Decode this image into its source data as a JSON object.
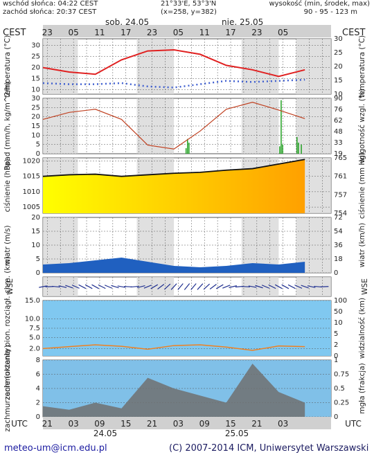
{
  "header": {
    "sunrise": "wschód słońca: 04:22 CEST",
    "sunset": "zachód słońca: 20:37 CEST",
    "coords": "21°33'E, 53°3'N",
    "grid": "(x=258, y=382)",
    "height_label": "wysokość (min, środek, max)",
    "height_values": "90 - 95 - 123 m",
    "day1": "sob, 24.05",
    "day2": "nie, 25.05",
    "tz_left": "CEST",
    "tz_right": "CEST",
    "utc_left": "UTC",
    "utc_right": "UTC",
    "date1": "24.05",
    "date2": "25.05"
  },
  "footer": {
    "email": "meteo-um@icm.edu.pl",
    "copyright": "(C) 2007-2014 ICM, Uniwersytet Warszawski"
  },
  "colors": {
    "panel_bg": "#ffffff",
    "night": "#d8d8d8",
    "temp_line": "#e02020",
    "dew_dots": "#4060d0",
    "humidity": "#c04020",
    "precip": "#20a020",
    "pressure_line": "#101010",
    "pressure_fill_low": "#ffff00",
    "pressure_fill_high": "#ffa000",
    "wind_bar": "#2060c0",
    "cloud_bg": "#80c8f0",
    "cloud_line": "#f08020",
    "cloud_bar": "#3060d8"
  },
  "chart_data": {
    "type": "meteogram",
    "top_ticks_cest": [
      "23",
      "05",
      "11",
      "17",
      "23",
      "05",
      "11",
      "17",
      "23",
      "05"
    ],
    "bottom_ticks_utc": [
      "21",
      "03",
      "09",
      "15",
      "21",
      "03",
      "09",
      "15",
      "21",
      "03"
    ],
    "panels": [
      {
        "id": "temperature",
        "ylabel_left": "temperatura (°C)",
        "ylabel_right": "temperatura (°C)",
        "yticks": [
          10,
          15,
          20,
          25,
          30
        ],
        "ylim": [
          8,
          33
        ],
        "series": [
          {
            "x": [
              0,
              6,
              12,
              18,
              24,
              30,
              36,
              42,
              48,
              54,
              60
            ],
            "values": [
              20,
              18,
              17,
              23.5,
              27.5,
              28,
              26,
              21,
              19,
              16,
              19
            ]
          },
          {
            "x": [
              0,
              6,
              12,
              18,
              24,
              30,
              36,
              42,
              48,
              54,
              60
            ],
            "values": [
              13,
              12.5,
              12.5,
              13,
              11.5,
              11,
              12.5,
              14,
              13.5,
              14,
              14.5
            ]
          }
        ]
      },
      {
        "id": "precipitation",
        "ylabel_left": "opad (mm/h, kg/m^2/h)",
        "ylabel_right": "wilgotność wzgl. (%)",
        "yticks_left": [
          0,
          5,
          10,
          15,
          20,
          25,
          30
        ],
        "yticks_right": [
          "19",
          "33",
          "48",
          "62",
          "76",
          "90"
        ],
        "ylim": [
          0,
          30
        ],
        "series": [
          {
            "x": [
              0,
              6,
              12,
              18,
              24,
              30,
              36,
              42,
              48,
              54,
              60
            ],
            "values": [
              63,
              72,
              76,
              63,
              30,
              25,
              48,
              76,
              85,
              75,
              64
            ]
          }
        ],
        "bars": [
          {
            "x": 49.5,
            "value": 3
          },
          {
            "x": 50,
            "value": 8
          },
          {
            "x": 50.5,
            "value": 6
          },
          {
            "x": 82,
            "value": 4
          },
          {
            "x": 82.5,
            "value": 29
          },
          {
            "x": 83,
            "value": 5
          },
          {
            "x": 88,
            "value": 9
          },
          {
            "x": 88.5,
            "value": 6
          },
          {
            "x": 89.5,
            "value": 5
          }
        ]
      },
      {
        "id": "pressure",
        "ylabel_left": "ciśnienie (hPa)",
        "ylabel_right": "ciśnienie (mm Hg)",
        "yticks_left": [
          1005,
          1010,
          1015,
          1020
        ],
        "yticks_right": [
          "754",
          "757",
          "761",
          "765"
        ],
        "ylim": [
          1003,
          1021
        ],
        "series": [
          {
            "x": [
              0,
              6,
              12,
              18,
              24,
              30,
              36,
              42,
              48,
              54,
              60
            ],
            "values": [
              1015,
              1015.5,
              1015.7,
              1015,
              1015.5,
              1016,
              1016.3,
              1017,
              1017.5,
              1019,
              1020.5
            ]
          }
        ]
      },
      {
        "id": "wind",
        "ylabel_left": "wiatr (m/s)",
        "ylabel_right": "wiatr (km/h)",
        "yticks_left": [
          0,
          5,
          10,
          15,
          20
        ],
        "yticks_right": [
          "0",
          "18",
          "36",
          "54",
          "72"
        ],
        "ylim": [
          0,
          20
        ],
        "series": [
          {
            "x": [
              0,
              6,
              12,
              18,
              24,
              30,
              36,
              42,
              48,
              54,
              60
            ],
            "values": [
              3,
              3.5,
              4.5,
              5.5,
              4,
              2.5,
              2,
              2.5,
              3.5,
              3,
              4
            ]
          }
        ]
      },
      {
        "id": "direction",
        "ylabel": "W S N E"
      },
      {
        "id": "cloud_base",
        "ylabel_left": "zachmurzenie pion. rozciągł. chm. (km)",
        "ylabel_right": "widzialność (km)",
        "yticks_left": [
          "2.0",
          "5.0",
          "7.5",
          "10.0",
          "15.0"
        ],
        "yticks_right": [
          "0",
          "2",
          "5",
          "10",
          "50",
          "100"
        ],
        "ylim": [
          0,
          15
        ],
        "series": [
          {
            "x": [
              0,
              6,
              12,
              18,
              24,
              30,
              36,
              42,
              48,
              54,
              60
            ],
            "values": [
              2.0,
              2.5,
              3.0,
              2.6,
              1.8,
              2.8,
              3.0,
              2.4,
              1.5,
              2.7,
              2.5
            ]
          }
        ]
      },
      {
        "id": "cloud_cover",
        "ylabel_left": "zachmurzenie (oktanty)",
        "ylabel_right": "mgła (frakcja)",
        "yticks_left": [
          0,
          2,
          4,
          6,
          8
        ],
        "yticks_right": [
          "0",
          "0.25",
          "0.5",
          "0.75",
          "1"
        ],
        "ylim": [
          0,
          8
        ],
        "series": [
          {
            "x": [
              0,
              6,
              12,
              18,
              24,
              30,
              36,
              42,
              48,
              54,
              60
            ],
            "values": [
              1.5,
              1,
              2,
              1.2,
              5.5,
              4,
              3,
              2,
              7.5,
              3.5,
              2
            ]
          }
        ]
      }
    ]
  }
}
